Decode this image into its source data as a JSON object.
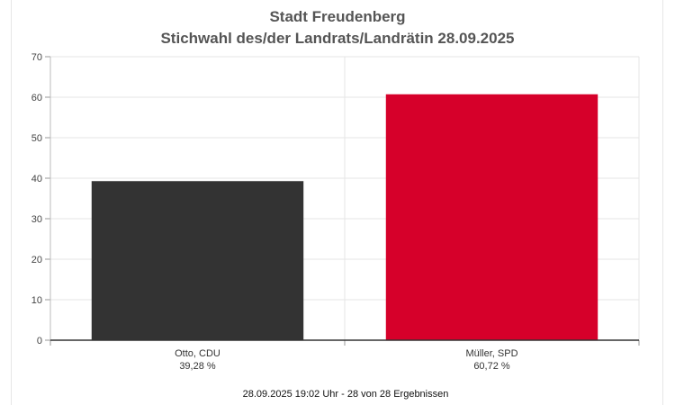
{
  "chart_data": {
    "type": "bar",
    "title": "Stadt Freudenberg",
    "subtitle": "Stichwahl des/der Landrats/Landrätin 28.09.2025",
    "categories": [
      "Otto, CDU",
      "Müller, SPD"
    ],
    "value_labels": [
      "39,28 %",
      "60,72 %"
    ],
    "values": [
      39.28,
      60.72
    ],
    "colors": [
      "#333333",
      "#d6002a"
    ],
    "ylim": [
      0,
      70
    ],
    "yticks": [
      "0",
      "10",
      "20",
      "30",
      "40",
      "50",
      "60",
      "70"
    ],
    "grid": true,
    "footer": "28.09.2025 19:02 Uhr - 28 von 28 Ergebnissen"
  }
}
